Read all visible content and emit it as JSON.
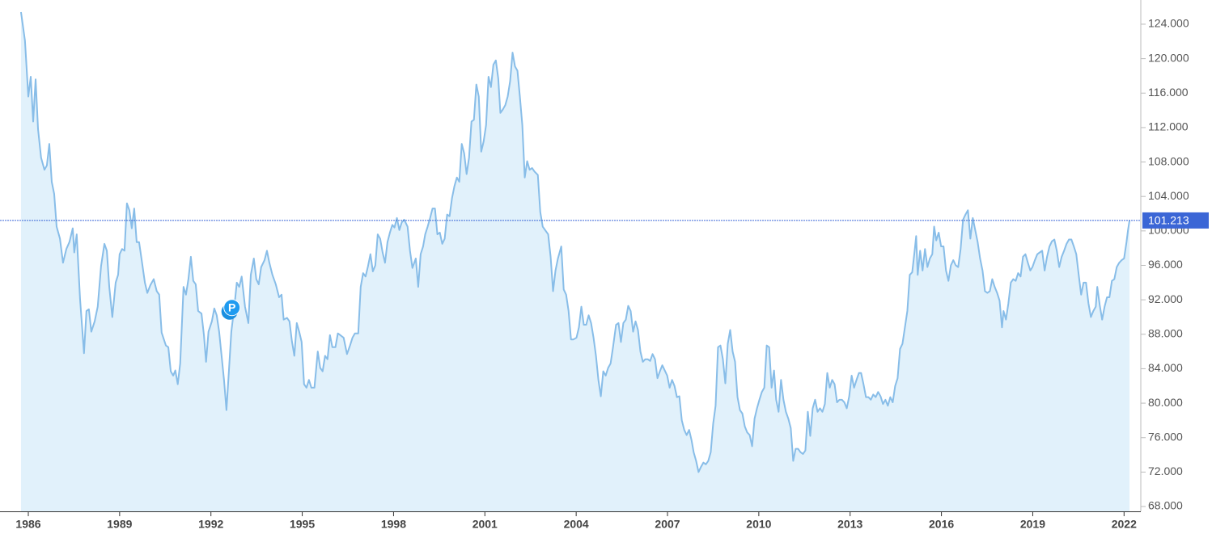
{
  "chart_data": {
    "type": "area",
    "color": "#88bde8",
    "fill": "#e1f1fb",
    "xlim": [
      1985.07,
      2022.55
    ],
    "xticks": [
      1986,
      1989,
      1992,
      1995,
      1998,
      2001,
      2004,
      2007,
      2010,
      2013,
      2016,
      2019,
      2022
    ],
    "ylim": [
      67.44,
      126.81
    ],
    "yticks": [
      {
        "value": 68,
        "label": "68.000"
      },
      {
        "value": 72,
        "label": "72.000"
      },
      {
        "value": 76,
        "label": "76.000"
      },
      {
        "value": 80,
        "label": "80.000"
      },
      {
        "value": 84,
        "label": "84.000"
      },
      {
        "value": 88,
        "label": "88.000"
      },
      {
        "value": 92,
        "label": "92.000"
      },
      {
        "value": 96,
        "label": "96.000"
      },
      {
        "value": 100,
        "label": "100.000"
      },
      {
        "value": 104,
        "label": "104.000"
      },
      {
        "value": 108,
        "label": "108.000"
      },
      {
        "value": 112,
        "label": "112.000"
      },
      {
        "value": 116,
        "label": "116.000"
      },
      {
        "value": 120,
        "label": "120.000"
      },
      {
        "value": 124,
        "label": "124.000"
      }
    ],
    "last_value": 101.213,
    "annotations": [
      {
        "label": "P",
        "x": 1992.69,
        "y": 91.1
      }
    ],
    "x": [
      1985.76,
      1985.89,
      1986.0,
      1986.08,
      1986.16,
      1986.24,
      1986.32,
      1986.42,
      1986.53,
      1986.61,
      1986.69,
      1986.77,
      1986.85,
      1986.93,
      1987.04,
      1987.14,
      1987.25,
      1987.35,
      1987.46,
      1987.51,
      1987.59,
      1987.7,
      1987.83,
      1987.91,
      1987.99,
      1988.07,
      1988.18,
      1988.28,
      1988.39,
      1988.5,
      1988.58,
      1988.66,
      1988.76,
      1988.87,
      1988.95,
      1989.0,
      1989.08,
      1989.16,
      1989.24,
      1989.32,
      1989.4,
      1989.48,
      1989.56,
      1989.64,
      1989.75,
      1989.83,
      1989.91,
      1990.01,
      1990.12,
      1990.22,
      1990.3,
      1990.38,
      1990.52,
      1990.6,
      1990.68,
      1990.76,
      1990.83,
      1990.91,
      1990.99,
      1991.1,
      1991.18,
      1991.26,
      1991.34,
      1991.42,
      1991.5,
      1991.58,
      1991.69,
      1991.77,
      1991.84,
      1991.92,
      1992.03,
      1992.11,
      1992.19,
      1992.27,
      1992.35,
      1992.43,
      1992.51,
      1992.59,
      1992.67,
      1992.77,
      1992.85,
      1992.93,
      1993.01,
      1993.12,
      1993.23,
      1993.31,
      1993.41,
      1993.49,
      1993.57,
      1993.65,
      1993.76,
      1993.84,
      1993.92,
      1994.02,
      1994.13,
      1994.24,
      1994.32,
      1994.39,
      1994.5,
      1994.58,
      1994.66,
      1994.74,
      1994.82,
      1994.9,
      1994.98,
      1995.06,
      1995.14,
      1995.22,
      1995.3,
      1995.4,
      1995.51,
      1995.59,
      1995.67,
      1995.75,
      1995.83,
      1995.91,
      1995.99,
      1996.09,
      1996.17,
      1996.25,
      1996.36,
      1996.47,
      1996.57,
      1996.65,
      1996.73,
      1996.84,
      1996.92,
      1997.0,
      1997.08,
      1997.16,
      1997.24,
      1997.32,
      1997.4,
      1997.48,
      1997.56,
      1997.64,
      1997.72,
      1997.8,
      1997.88,
      1997.96,
      1998.03,
      1998.11,
      1998.19,
      1998.27,
      1998.35,
      1998.46,
      1998.54,
      1998.62,
      1998.73,
      1998.81,
      1998.89,
      1998.97,
      1999.04,
      1999.12,
      1999.2,
      1999.28,
      1999.36,
      1999.44,
      1999.52,
      1999.6,
      1999.68,
      1999.76,
      1999.84,
      1999.92,
      2000.0,
      2000.08,
      2000.16,
      2000.24,
      2000.32,
      2000.4,
      2000.48,
      2000.56,
      2000.64,
      2000.72,
      2000.8,
      2000.88,
      2000.96,
      2001.04,
      2001.12,
      2001.2,
      2001.28,
      2001.36,
      2001.44,
      2001.51,
      2001.59,
      2001.67,
      2001.75,
      2001.83,
      2001.91,
      2001.99,
      2002.07,
      2002.15,
      2002.23,
      2002.31,
      2002.39,
      2002.47,
      2002.55,
      2002.63,
      2002.74,
      2002.82,
      2002.9,
      2002.98,
      2003.08,
      2003.16,
      2003.24,
      2003.32,
      2003.4,
      2003.51,
      2003.59,
      2003.67,
      2003.75,
      2003.83,
      2003.91,
      2004.01,
      2004.09,
      2004.17,
      2004.25,
      2004.33,
      2004.41,
      2004.49,
      2004.57,
      2004.65,
      2004.73,
      2004.81,
      2004.89,
      2004.97,
      2005.05,
      2005.13,
      2005.21,
      2005.31,
      2005.39,
      2005.47,
      2005.55,
      2005.63,
      2005.71,
      2005.79,
      2005.87,
      2005.95,
      2006.03,
      2006.11,
      2006.19,
      2006.27,
      2006.35,
      2006.43,
      2006.51,
      2006.59,
      2006.67,
      2006.75,
      2006.83,
      2006.91,
      2006.99,
      2007.07,
      2007.15,
      2007.23,
      2007.31,
      2007.39,
      2007.47,
      2007.55,
      2007.63,
      2007.71,
      2007.79,
      2007.86,
      2007.94,
      2008.02,
      2008.1,
      2008.18,
      2008.26,
      2008.34,
      2008.42,
      2008.5,
      2008.58,
      2008.66,
      2008.74,
      2008.82,
      2008.9,
      2008.98,
      2009.06,
      2009.14,
      2009.22,
      2009.3,
      2009.38,
      2009.46,
      2009.54,
      2009.62,
      2009.7,
      2009.78,
      2009.86,
      2009.94,
      2010.02,
      2010.1,
      2010.18,
      2010.26,
      2010.34,
      2010.42,
      2010.5,
      2010.57,
      2010.65,
      2010.73,
      2010.81,
      2010.89,
      2010.97,
      2011.05,
      2011.13,
      2011.21,
      2011.29,
      2011.37,
      2011.45,
      2011.53,
      2011.61,
      2011.69,
      2011.77,
      2011.85,
      2011.93,
      2012.01,
      2012.09,
      2012.17,
      2012.25,
      2012.33,
      2012.41,
      2012.49,
      2012.57,
      2012.65,
      2012.73,
      2012.81,
      2012.89,
      2012.97,
      2013.05,
      2013.13,
      2013.21,
      2013.29,
      2013.36,
      2013.44,
      2013.52,
      2013.6,
      2013.68,
      2013.76,
      2013.84,
      2013.92,
      2014.0,
      2014.08,
      2014.16,
      2014.24,
      2014.32,
      2014.4,
      2014.48,
      2014.56,
      2014.64,
      2014.72,
      2014.8,
      2014.88,
      2014.96,
      2015.04,
      2015.12,
      2015.17,
      2015.22,
      2015.3,
      2015.38,
      2015.46,
      2015.54,
      2015.62,
      2015.7,
      2015.76,
      2015.83,
      2015.91,
      2015.99,
      2016.07,
      2016.15,
      2016.23,
      2016.31,
      2016.39,
      2016.47,
      2016.55,
      2016.63,
      2016.71,
      2016.79,
      2016.87,
      2016.95,
      2017.03,
      2017.11,
      2017.19,
      2017.27,
      2017.35,
      2017.43,
      2017.51,
      2017.59,
      2017.67,
      2017.75,
      2017.83,
      2017.91,
      2017.99,
      2018.04,
      2018.12,
      2018.2,
      2018.28,
      2018.36,
      2018.44,
      2018.52,
      2018.6,
      2018.68,
      2018.76,
      2018.84,
      2018.92,
      2018.99,
      2019.07,
      2019.15,
      2019.23,
      2019.31,
      2019.39,
      2019.47,
      2019.55,
      2019.63,
      2019.71,
      2019.79,
      2019.87,
      2019.95,
      2020.03,
      2020.11,
      2020.19,
      2020.27,
      2020.35,
      2020.43,
      2020.51,
      2020.59,
      2020.67,
      2020.75,
      2020.83,
      2020.91,
      2020.99,
      2021.07,
      2021.12,
      2021.2,
      2021.28,
      2021.36,
      2021.44,
      2021.52,
      2021.6,
      2021.68,
      2021.76,
      2021.84,
      2021.92,
      2022.0,
      2022.08,
      2022.13,
      2022.18
    ],
    "values": [
      125.4,
      122.1,
      115.6,
      117.9,
      112.7,
      117.6,
      111.8,
      108.5,
      107.1,
      107.6,
      110.1,
      105.7,
      104.3,
      100.5,
      99.1,
      96.3,
      97.9,
      98.7,
      100.3,
      97.5,
      99.6,
      92.1,
      85.8,
      90.7,
      90.9,
      88.3,
      89.5,
      91.2,
      95.9,
      98.5,
      97.7,
      93.5,
      90.0,
      94.0,
      94.9,
      97.3,
      97.9,
      97.7,
      103.2,
      102.4,
      100.3,
      102.6,
      98.7,
      98.7,
      96.0,
      94.0,
      92.8,
      93.7,
      94.4,
      93.0,
      92.6,
      88.2,
      86.7,
      86.5,
      83.7,
      83.2,
      83.8,
      82.2,
      84.6,
      93.5,
      92.6,
      94.4,
      97.0,
      94.2,
      93.8,
      90.7,
      90.4,
      87.9,
      84.8,
      88.3,
      89.5,
      91.0,
      90.2,
      88.3,
      85.5,
      82.7,
      79.2,
      83.7,
      88.3,
      91.2,
      94.0,
      93.5,
      94.7,
      91.2,
      89.3,
      94.9,
      96.8,
      94.4,
      93.8,
      95.8,
      96.6,
      97.7,
      96.3,
      94.9,
      93.8,
      92.3,
      92.6,
      89.7,
      89.9,
      89.5,
      87.2,
      85.5,
      89.3,
      88.3,
      87.1,
      82.2,
      81.8,
      82.7,
      81.8,
      81.8,
      86.0,
      84.1,
      83.7,
      85.5,
      85.1,
      87.9,
      86.5,
      86.5,
      88.1,
      87.9,
      87.6,
      85.7,
      86.7,
      87.6,
      88.1,
      88.1,
      93.5,
      95.1,
      94.7,
      95.9,
      97.3,
      95.3,
      96.0,
      99.6,
      99.1,
      97.5,
      96.3,
      98.7,
      99.8,
      100.7,
      100.4,
      101.5,
      100.1,
      101.0,
      101.3,
      100.5,
      97.7,
      95.7,
      96.8,
      93.5,
      97.3,
      98.2,
      99.6,
      100.5,
      101.5,
      102.6,
      102.6,
      99.6,
      99.8,
      98.5,
      99.1,
      101.9,
      101.7,
      103.8,
      105.2,
      106.2,
      105.7,
      110.1,
      109.0,
      106.6,
      108.5,
      112.7,
      112.9,
      117.0,
      115.6,
      109.2,
      110.4,
      112.3,
      117.9,
      116.7,
      119.3,
      119.8,
      117.7,
      113.7,
      114.1,
      114.6,
      115.6,
      117.4,
      120.7,
      119.1,
      118.6,
      115.6,
      112.3,
      106.2,
      108.1,
      107.1,
      107.3,
      106.9,
      106.5,
      102.2,
      100.5,
      100.1,
      99.6,
      97.0,
      93.0,
      95.4,
      96.8,
      98.2,
      93.2,
      92.6,
      90.7,
      87.4,
      87.4,
      87.6,
      88.8,
      91.2,
      89.1,
      89.1,
      90.2,
      89.3,
      87.6,
      85.5,
      82.7,
      80.8,
      83.7,
      83.2,
      84.1,
      84.6,
      86.5,
      89.1,
      89.3,
      87.1,
      89.3,
      89.7,
      91.3,
      90.7,
      88.3,
      89.5,
      88.5,
      86.0,
      84.8,
      85.1,
      85.1,
      84.9,
      85.7,
      85.1,
      82.9,
      83.7,
      84.4,
      83.8,
      83.2,
      81.8,
      82.7,
      82.0,
      80.7,
      80.8,
      78.0,
      76.9,
      76.3,
      76.9,
      75.7,
      74.3,
      73.3,
      72.0,
      72.6,
      73.1,
      72.9,
      73.3,
      74.3,
      77.6,
      79.7,
      86.5,
      86.7,
      85.1,
      82.3,
      86.9,
      88.5,
      86.0,
      84.8,
      80.7,
      79.2,
      78.8,
      77.3,
      76.6,
      76.3,
      75.0,
      78.2,
      79.4,
      80.4,
      81.3,
      81.8,
      86.7,
      86.5,
      81.8,
      83.8,
      80.4,
      79.0,
      82.7,
      80.4,
      79.0,
      78.2,
      77.1,
      73.3,
      74.7,
      74.7,
      74.3,
      74.1,
      74.5,
      79.0,
      76.2,
      79.4,
      80.4,
      79.0,
      79.4,
      79.0,
      79.9,
      83.5,
      81.8,
      82.7,
      82.2,
      80.1,
      80.4,
      80.4,
      80.1,
      79.4,
      80.8,
      83.2,
      81.8,
      82.7,
      83.5,
      83.5,
      82.2,
      80.7,
      80.7,
      80.4,
      81.0,
      80.7,
      81.3,
      80.8,
      79.9,
      80.4,
      79.7,
      80.7,
      80.1,
      82.0,
      82.9,
      86.3,
      86.9,
      88.8,
      90.7,
      94.9,
      95.2,
      97.7,
      99.4,
      94.9,
      97.7,
      95.4,
      97.9,
      95.8,
      96.8,
      97.3,
      100.5,
      98.9,
      99.8,
      98.2,
      98.2,
      95.4,
      94.2,
      96.0,
      96.6,
      96.0,
      95.8,
      97.9,
      101.3,
      101.9,
      102.4,
      99.1,
      101.5,
      100.1,
      98.7,
      96.8,
      95.4,
      93.0,
      92.8,
      93.0,
      94.4,
      93.5,
      92.8,
      91.9,
      88.8,
      90.7,
      89.7,
      91.6,
      94.0,
      94.4,
      94.2,
      95.1,
      94.7,
      97.0,
      97.3,
      96.3,
      95.4,
      95.8,
      96.6,
      97.3,
      97.5,
      97.7,
      95.4,
      97.0,
      98.2,
      98.8,
      99.0,
      97.7,
      95.8,
      97.0,
      97.7,
      98.5,
      99.0,
      99.0,
      98.2,
      97.3,
      94.9,
      92.6,
      94.0,
      94.0,
      91.6,
      90.0,
      90.7,
      91.2,
      93.5,
      91.4,
      89.7,
      91.2,
      92.3,
      92.3,
      94.2,
      94.4,
      95.8,
      96.3,
      96.6,
      96.8,
      98.7,
      100.1,
      101.213
    ]
  }
}
